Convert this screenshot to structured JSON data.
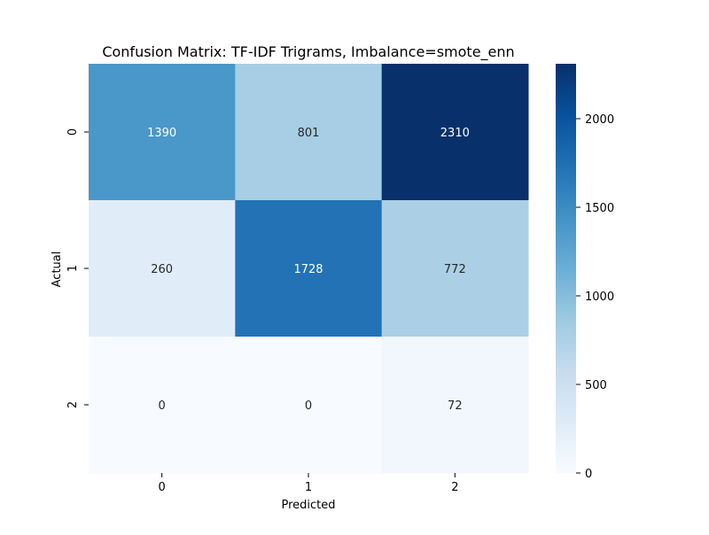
{
  "chart_data": {
    "type": "heatmap",
    "title": "Confusion Matrix: TF-IDF Trigrams, Imbalance=smote_enn",
    "xlabel": "Predicted",
    "ylabel": "Actual",
    "x_categories": [
      "0",
      "1",
      "2"
    ],
    "y_categories": [
      "0",
      "1",
      "2"
    ],
    "values": [
      [
        1390,
        801,
        2310
      ],
      [
        260,
        1728,
        772
      ],
      [
        0,
        0,
        72
      ]
    ],
    "colormap": "Blues",
    "colorbar": {
      "ticks": [
        0,
        500,
        1000,
        1500,
        2000
      ],
      "range": [
        0,
        2310
      ]
    },
    "colors": {
      "low": "#f7fbff",
      "high": "#08306b",
      "text_dark": "#262626",
      "text_light": "#ffffff"
    }
  }
}
